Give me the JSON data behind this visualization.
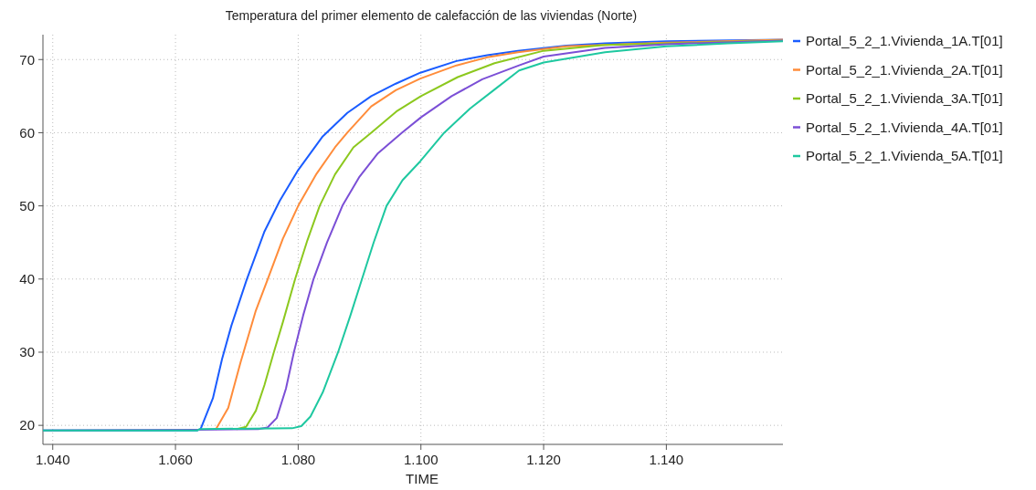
{
  "chart_data": {
    "type": "line",
    "title": "Temperatura del primer elemento de calefacción de las viviendas (Norte)",
    "xlabel": "TIME",
    "xlim": [
      1.0384,
      1.159
    ],
    "ylim": [
      17.4,
      73.4
    ],
    "xticks": [
      {
        "value": 1.04,
        "label": "1.040"
      },
      {
        "value": 1.06,
        "label": "1.060"
      },
      {
        "value": 1.08,
        "label": "1.080"
      },
      {
        "value": 1.1,
        "label": "1.100"
      },
      {
        "value": 1.12,
        "label": "1.120"
      },
      {
        "value": 1.14,
        "label": "1.140"
      }
    ],
    "yticks": [
      20,
      30,
      40,
      50,
      60,
      70
    ],
    "grid": true,
    "legend": "right",
    "series": [
      {
        "name": "Portal_5_2_1.Vivienda_1A.T[01]",
        "color": "#1a5cff",
        "x": [
          1.0384,
          1.0635,
          1.0641,
          1.0661,
          1.0676,
          1.0691,
          1.0716,
          1.0745,
          1.077,
          1.08,
          1.084,
          1.088,
          1.0919,
          1.0959,
          1.0999,
          1.1058,
          1.1108,
          1.1158,
          1.1237,
          1.13,
          1.14,
          1.159
        ],
        "values": [
          19.3,
          19.3,
          19.5,
          23.7,
          29.1,
          33.6,
          39.9,
          46.5,
          50.7,
          54.9,
          59.5,
          62.7,
          65.0,
          66.7,
          68.2,
          69.8,
          70.6,
          71.2,
          71.9,
          72.2,
          72.5,
          72.7
        ]
      },
      {
        "name": "Portal_5_2_1.Vivienda_2A.T[01]",
        "color": "#ff8c3a",
        "x": [
          1.0666,
          1.0686,
          1.0706,
          1.0731,
          1.075,
          1.0775,
          1.08,
          1.083,
          1.086,
          1.088,
          1.0919,
          1.0959,
          1.0999,
          1.1058,
          1.1108,
          1.1158,
          1.1237,
          1.14,
          1.159
        ],
        "values": [
          19.5,
          22.4,
          28.6,
          35.7,
          39.9,
          45.5,
          50.0,
          54.4,
          58.0,
          60.0,
          63.6,
          65.8,
          67.4,
          69.2,
          70.3,
          71.0,
          71.8,
          72.3,
          72.7
        ]
      },
      {
        "name": "Portal_5_2_1.Vivienda_3A.T[01]",
        "color": "#8cc81e",
        "x": [
          1.07,
          1.0715,
          1.0731,
          1.0745,
          1.076,
          1.0775,
          1.0795,
          1.0815,
          1.0835,
          1.086,
          1.089,
          1.0919,
          1.096,
          1.1,
          1.106,
          1.112,
          1.12,
          1.13,
          1.159
        ],
        "values": [
          19.5,
          19.8,
          22.0,
          25.5,
          29.9,
          34.1,
          40.0,
          45.3,
          50.0,
          54.3,
          58.0,
          60.0,
          62.9,
          65.0,
          67.6,
          69.5,
          71.2,
          72.0,
          72.6
        ]
      },
      {
        "name": "Portal_5_2_1.Vivienda_4A.T[01]",
        "color": "#7b4fd6",
        "x": [
          1.0384,
          1.0635,
          1.0735,
          1.075,
          1.0765,
          1.078,
          1.0793,
          1.0808,
          1.0825,
          1.0847,
          1.0872,
          1.09,
          1.093,
          1.0969,
          1.1,
          1.105,
          1.11,
          1.116,
          1.12,
          1.13,
          1.14,
          1.159
        ],
        "values": [
          19.3,
          19.4,
          19.5,
          19.7,
          21.0,
          25.0,
          30.0,
          35.0,
          40.0,
          45.0,
          50.0,
          54.0,
          57.2,
          60.0,
          62.1,
          65.0,
          67.3,
          69.2,
          70.4,
          71.6,
          72.1,
          72.6
        ]
      },
      {
        "name": "Portal_5_2_1.Vivienda_5A.T[01]",
        "color": "#1ec8a0",
        "x": [
          1.0384,
          1.0635,
          1.064,
          1.079,
          1.0805,
          1.082,
          1.084,
          1.0865,
          1.0885,
          1.0904,
          1.0923,
          1.0944,
          1.097,
          1.0999,
          1.1038,
          1.108,
          1.112,
          1.116,
          1.12,
          1.13,
          1.14,
          1.15,
          1.159
        ],
        "values": [
          19.3,
          19.3,
          19.5,
          19.6,
          19.9,
          21.2,
          24.5,
          30.0,
          35.0,
          40.0,
          45.0,
          50.0,
          53.5,
          56.1,
          60.0,
          63.3,
          65.9,
          68.5,
          69.6,
          71.0,
          71.8,
          72.2,
          72.5
        ]
      }
    ]
  }
}
